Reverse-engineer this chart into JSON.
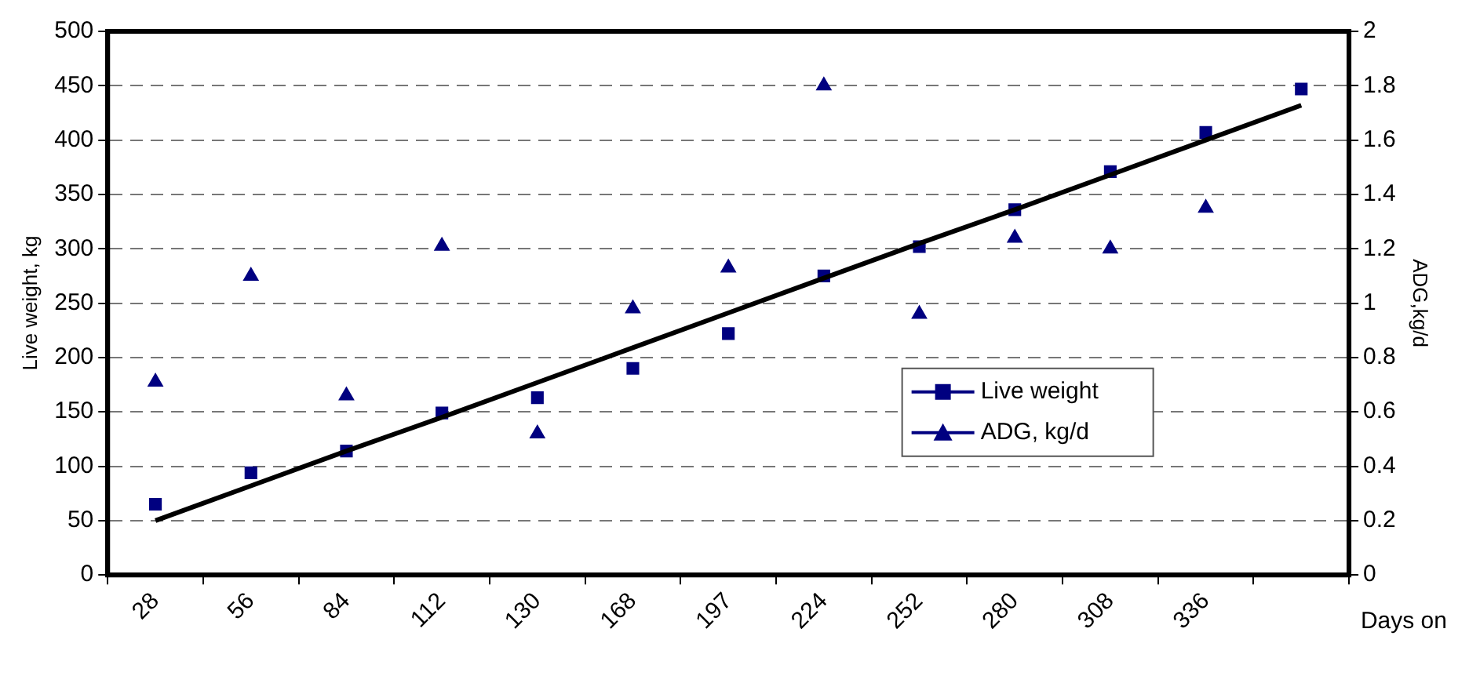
{
  "chart_data": {
    "type": "scatter",
    "xlabel": "Days on",
    "ylabel": "Live weight, kg",
    "y2label": "ADG,kg/d",
    "categories": [
      "28",
      "56",
      "84",
      "112",
      "130",
      "168",
      "197",
      "224",
      "252",
      "280",
      "308",
      "336",
      null
    ],
    "series": [
      {
        "type": "line",
        "color": "#000000",
        "marker": "none",
        "line_style": "solid",
        "values": [
          50,
          82,
          114,
          145,
          177,
          209,
          241,
          273,
          305,
          336,
          368,
          400,
          432
        ]
      },
      {
        "name": "Live weight",
        "color": "#000080",
        "marker": "square",
        "values": [
          65,
          94,
          114,
          149,
          163,
          190,
          222,
          275,
          302,
          336,
          371,
          407,
          447
        ]
      },
      {
        "name": "ADG, kg/d",
        "axis": "y2",
        "color": "#000080",
        "marker": "triangle",
        "values": [
          0.71,
          1.1,
          0.66,
          1.21,
          0.52,
          0.98,
          1.13,
          1.8,
          0.96,
          1.24,
          1.2,
          1.35,
          null
        ]
      }
    ],
    "ylim": [
      0,
      500
    ],
    "yticks": [
      0,
      50,
      100,
      150,
      200,
      250,
      300,
      350,
      400,
      450,
      500
    ],
    "y2lim": [
      0,
      2
    ],
    "y2ticks": [
      0,
      0.2,
      0.4,
      0.6,
      0.8,
      1,
      1.2,
      1.4,
      1.6,
      1.8,
      2
    ],
    "grid": "y",
    "legend": "right"
  }
}
